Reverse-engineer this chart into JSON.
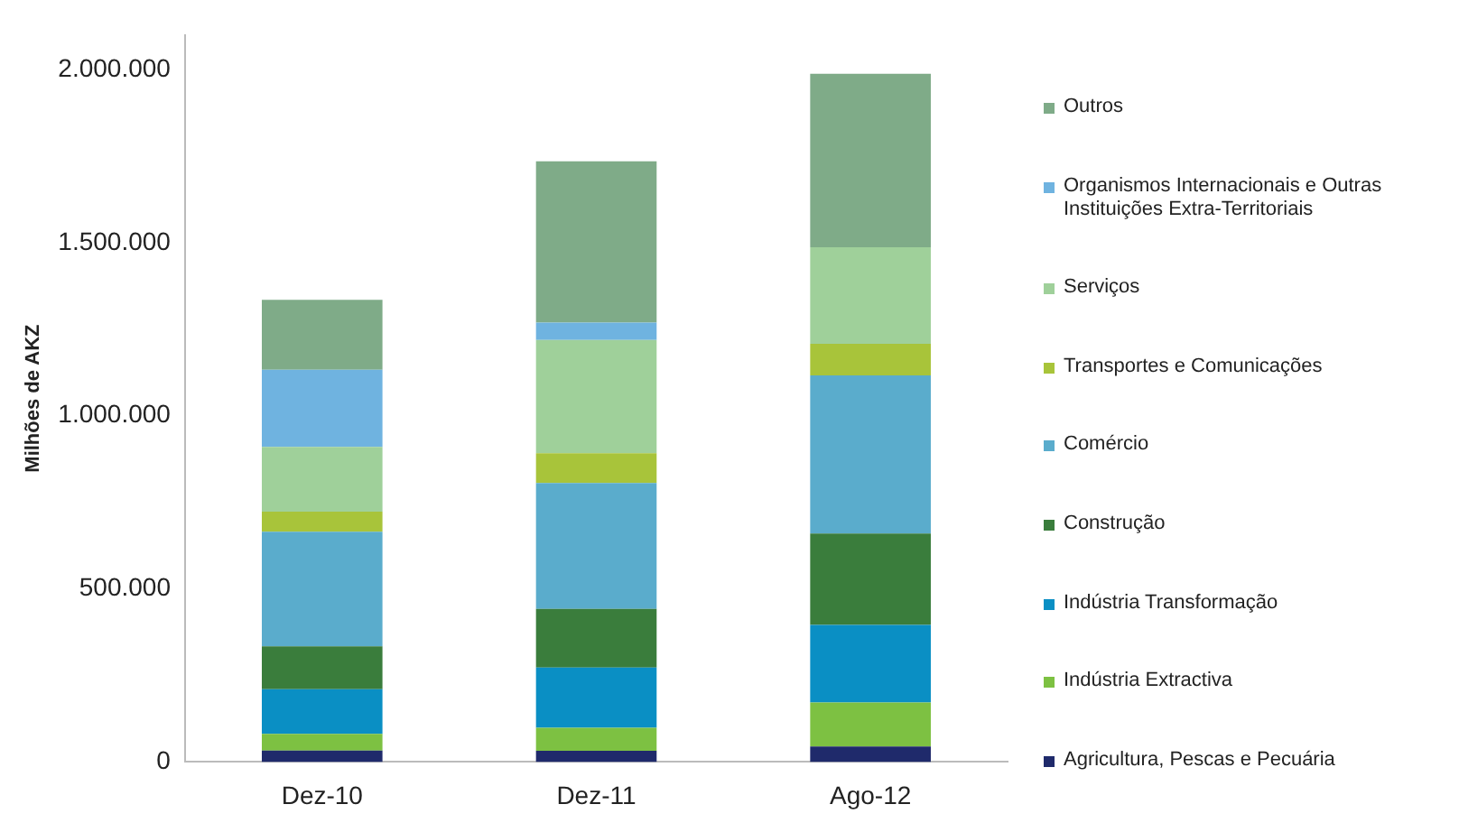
{
  "chart_data": {
    "type": "bar",
    "stacked": true,
    "ylabel": "Milhões de AKZ",
    "categories": [
      "Dez-10",
      "Dez-11",
      "Ago-12"
    ],
    "ylim": [
      0,
      2100000
    ],
    "yticks": [
      {
        "value": 0,
        "label": "0"
      },
      {
        "value": 500000,
        "label": "500.000"
      },
      {
        "value": 1000000,
        "label": "1.000.000"
      },
      {
        "value": 1500000,
        "label": "1.500.000"
      },
      {
        "value": 2000000,
        "label": "2.000.000"
      }
    ],
    "grid": false,
    "legend": "right",
    "series": [
      {
        "name": "Agricultura, Pescas e Pecuária",
        "color": "#1f2a6b",
        "values": [
          33000,
          32000,
          45000
        ]
      },
      {
        "name": "Indústria Extractiva",
        "color": "#7dc142",
        "values": [
          48000,
          67000,
          127000
        ]
      },
      {
        "name": "Indústria Transformação",
        "color": "#0a8fc4",
        "values": [
          129000,
          174000,
          224000
        ]
      },
      {
        "name": "Construção",
        "color": "#3a7d3c",
        "values": [
          124000,
          169000,
          264000
        ]
      },
      {
        "name": "Comércio",
        "color": "#5aaccc",
        "values": [
          331000,
          364000,
          457000
        ]
      },
      {
        "name": "Transportes e Comunicações",
        "color": "#a8c43a",
        "values": [
          58000,
          86000,
          91000
        ]
      },
      {
        "name": "Serviços",
        "color": "#9fd09a",
        "values": [
          187000,
          327000,
          279000
        ]
      },
      {
        "name": "Organismos Internacionais e Outras Instituições Extra-Territoriais",
        "color": "#6fb3e0",
        "values": [
          223000,
          50000,
          0
        ]
      },
      {
        "name": "Outros",
        "color": "#7fab88",
        "values": [
          202000,
          466000,
          501000
        ]
      }
    ]
  }
}
